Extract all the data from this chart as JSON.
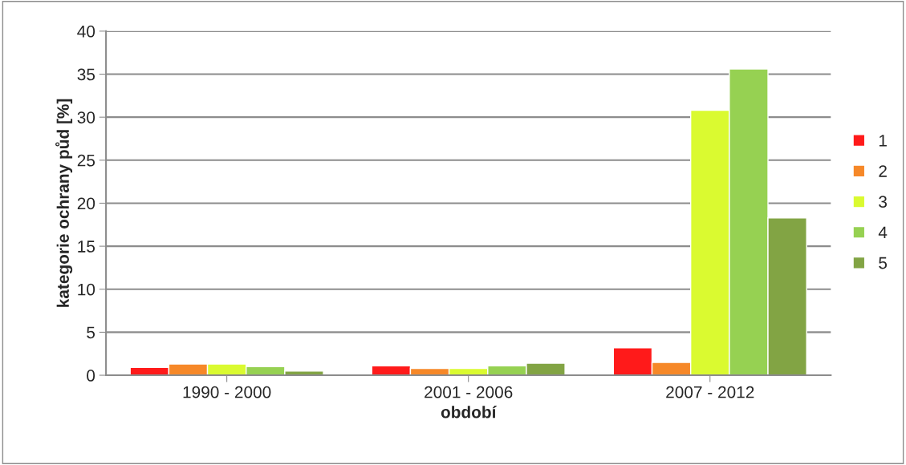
{
  "chart_data": {
    "type": "bar",
    "xlabel": "období",
    "ylabel": "kategorie ochrany půd [%]",
    "categories": [
      "1990 - 2000",
      "2001 - 2006",
      "2007 - 2012"
    ],
    "series": [
      {
        "name": "1",
        "color": "#ff1a1a",
        "values": [
          0.9,
          1.1,
          3.2
        ]
      },
      {
        "name": "2",
        "color": "#f68828",
        "values": [
          1.3,
          0.8,
          1.5
        ]
      },
      {
        "name": "3",
        "color": "#dafa30",
        "values": [
          1.3,
          0.8,
          30.8
        ]
      },
      {
        "name": "4",
        "color": "#96d152",
        "values": [
          1.0,
          1.1,
          35.6
        ]
      },
      {
        "name": "5",
        "color": "#82a444",
        "values": [
          0.5,
          1.4,
          18.3
        ]
      }
    ],
    "ylim": [
      0,
      40
    ],
    "yticks": [
      0,
      5,
      10,
      15,
      20,
      25,
      30,
      35,
      40
    ],
    "grid": "y",
    "legend": "right"
  }
}
